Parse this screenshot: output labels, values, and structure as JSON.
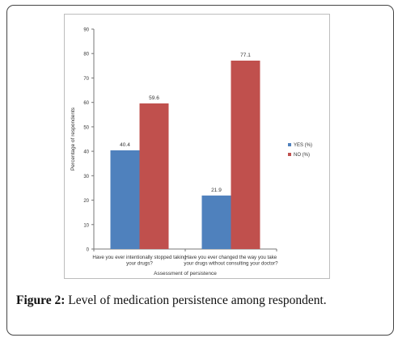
{
  "caption": {
    "label": "Figure 2:",
    "text": "Level of medication persistence among respondent."
  },
  "chart_data": {
    "type": "bar",
    "title": "",
    "xlabel": "Assessment of persistence",
    "ylabel": "Percentage of respondents",
    "ylim": [
      0,
      90
    ],
    "yticks": [
      0,
      10,
      20,
      30,
      40,
      50,
      60,
      70,
      80,
      90
    ],
    "grid": false,
    "legend_position": "right",
    "categories": [
      [
        "Have you ever intentionally stopped taking",
        "your drugs?"
      ],
      [
        "Have you ever changed the way you take",
        "your drugs without consulting your doctor?"
      ]
    ],
    "series": [
      {
        "name": "YES (%)",
        "color": "#4f81bd",
        "values": [
          40.4,
          21.9
        ]
      },
      {
        "name": "NO (%)",
        "color": "#c0504d",
        "values": [
          59.6,
          77.1
        ]
      }
    ]
  }
}
